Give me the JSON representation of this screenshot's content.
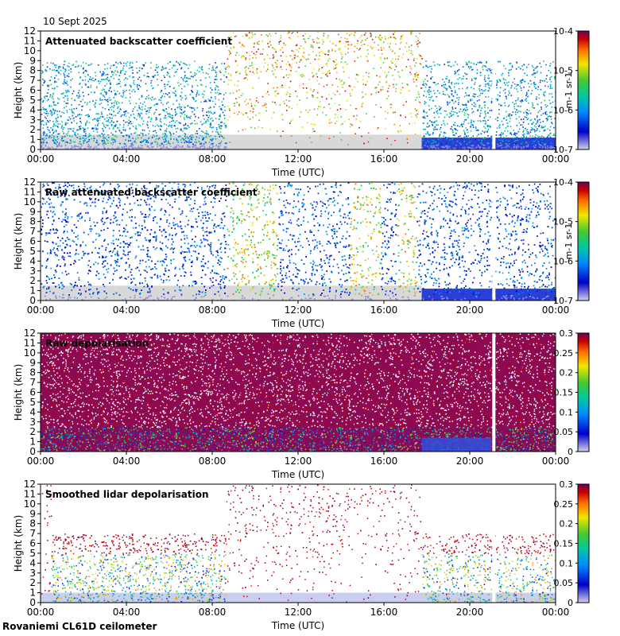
{
  "header": {
    "date": "10 Sept 2025"
  },
  "footer": {
    "instrument": "Rovaniemi CL61D ceilometer"
  },
  "chart_data": [
    {
      "type": "heatmap",
      "title": "Attenuated backscatter coefficient",
      "xlabel": "Time (UTC)",
      "ylabel": "Height (km)",
      "xticks": [
        "00:00",
        "04:00",
        "08:00",
        "12:00",
        "16:00",
        "20:00",
        "00:00"
      ],
      "yticks": [
        "0",
        "1",
        "2",
        "3",
        "4",
        "5",
        "6",
        "7",
        "8",
        "9",
        "10",
        "11",
        "12"
      ],
      "ylim": [
        0,
        12
      ],
      "colorbar": {
        "scale": "log",
        "range": [
          1e-07,
          0.0001
        ],
        "labels": [
          "10-7",
          "10-6",
          "10-5",
          "10-4"
        ],
        "unit": "m-1 sr-1"
      }
    },
    {
      "type": "heatmap",
      "title": "Raw attenuated backscatter coefficient",
      "xlabel": "Time (UTC)",
      "ylabel": "Height (km)",
      "xticks": [
        "00:00",
        "04:00",
        "08:00",
        "12:00",
        "16:00",
        "20:00",
        "00:00"
      ],
      "yticks": [
        "0",
        "1",
        "2",
        "3",
        "4",
        "5",
        "6",
        "7",
        "8",
        "9",
        "10",
        "11",
        "12"
      ],
      "ylim": [
        0,
        12
      ],
      "colorbar": {
        "scale": "log",
        "range": [
          1e-07,
          0.0001
        ],
        "labels": [
          "10-7",
          "10-6",
          "10-5",
          "10-4"
        ],
        "unit": "m-1 sr-1"
      }
    },
    {
      "type": "heatmap",
      "title": "Raw depolarisation",
      "xlabel": "Time (UTC)",
      "ylabel": "Height (km)",
      "xticks": [
        "00:00",
        "04:00",
        "08:00",
        "12:00",
        "16:00",
        "20:00",
        "00:00"
      ],
      "yticks": [
        "0",
        "1",
        "2",
        "3",
        "4",
        "5",
        "6",
        "7",
        "8",
        "9",
        "10",
        "11",
        "12"
      ],
      "ylim": [
        0,
        12
      ],
      "colorbar": {
        "scale": "linear",
        "range": [
          0,
          0.3
        ],
        "labels": [
          "0",
          "0.05",
          "0.1",
          "0.15",
          "0.2",
          "0.25",
          "0.3"
        ],
        "unit": ""
      }
    },
    {
      "type": "heatmap",
      "title": "Smoothed lidar depolarisation",
      "xlabel": "Time (UTC)",
      "ylabel": "Height (km)",
      "xticks": [
        "00:00",
        "04:00",
        "08:00",
        "12:00",
        "16:00",
        "20:00",
        "00:00"
      ],
      "yticks": [
        "0",
        "1",
        "2",
        "3",
        "4",
        "5",
        "6",
        "7",
        "8",
        "9",
        "10",
        "11",
        "12"
      ],
      "ylim": [
        0,
        12
      ],
      "colorbar": {
        "scale": "linear",
        "range": [
          0,
          0.3
        ],
        "labels": [
          "0",
          "0.05",
          "0.1",
          "0.15",
          "0.2",
          "0.25",
          "0.3"
        ],
        "unit": ""
      }
    }
  ]
}
